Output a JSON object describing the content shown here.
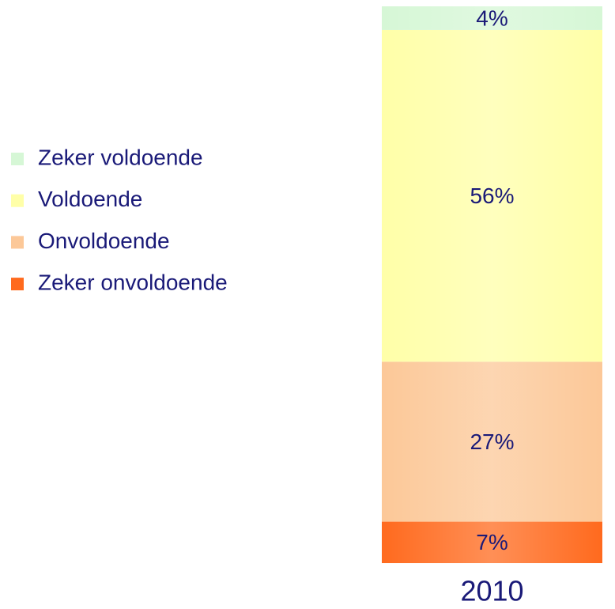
{
  "chart_data": {
    "type": "stacked-bar",
    "categories": [
      "2010"
    ],
    "series": [
      {
        "name": "Zeker voldoende",
        "color": "#d6f7d6",
        "values": [
          4
        ],
        "value_labels": [
          "4%"
        ]
      },
      {
        "name": "Voldoende",
        "color": "#ffffa8",
        "values": [
          56
        ],
        "value_labels": [
          "56%"
        ]
      },
      {
        "name": "Onvoldoende",
        "color": "#fcc898",
        "values": [
          27
        ],
        "value_labels": [
          "27%"
        ]
      },
      {
        "name": "Zeker onvoldoende",
        "color": "#ff6a1e",
        "values": [
          7
        ],
        "value_labels": [
          "7%"
        ]
      }
    ],
    "legend": "left"
  }
}
